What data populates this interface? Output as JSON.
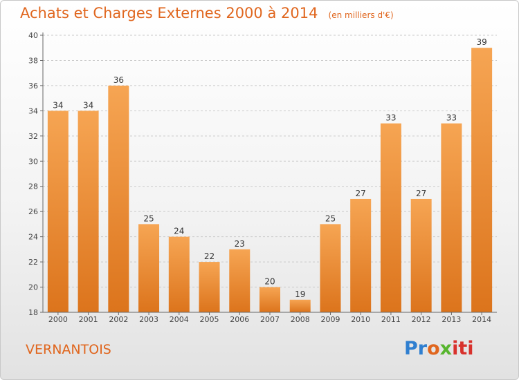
{
  "header": {
    "title": "Achats et Charges Externes 2000 à 2014",
    "unit": "(en milliers d'€)"
  },
  "footer": {
    "commune": "VERNANTOIS",
    "logo_parts": [
      "Pr",
      "o",
      "x",
      "iti"
    ]
  },
  "colors": {
    "bar_top": "#f6a553",
    "bar_bottom": "#dc741c",
    "title": "#e0661e"
  },
  "chart_data": {
    "type": "bar",
    "title": "Achats et Charges Externes 2000 à 2014",
    "categories": [
      "2000",
      "2001",
      "2002",
      "2003",
      "2004",
      "2005",
      "2006",
      "2007",
      "2008",
      "2009",
      "2010",
      "2011",
      "2012",
      "2013",
      "2014"
    ],
    "values": [
      34,
      34,
      36,
      25,
      24,
      22,
      23,
      20,
      19,
      25,
      27,
      33,
      27,
      33,
      39
    ],
    "ylim": [
      18,
      40
    ],
    "yticks": [
      18,
      20,
      22,
      24,
      26,
      28,
      30,
      32,
      34,
      36,
      38,
      40
    ],
    "grid": true,
    "xlabel": "",
    "ylabel": ""
  }
}
